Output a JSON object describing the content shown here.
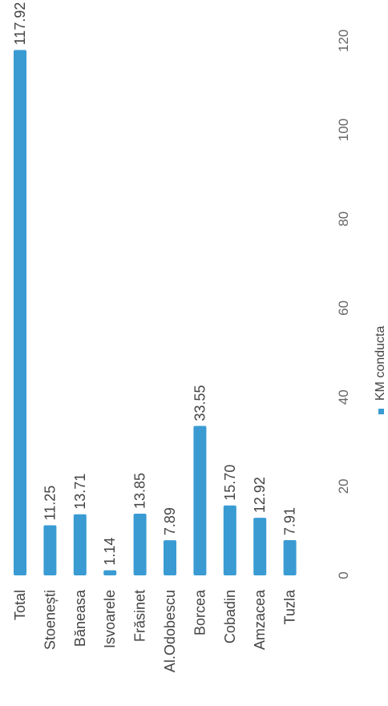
{
  "chart_data": {
    "type": "bar",
    "orientation": "rotated-90-ccw",
    "categories": [
      "Total",
      "Stoenești",
      "Băneasa",
      "Isvoarele",
      "Frăsinet",
      "Al.Odobescu",
      "Borcea",
      "Cobadin",
      "Amzacea",
      "Tuzla"
    ],
    "series": [
      {
        "name": "KM conducta",
        "values": [
          117.92,
          11.25,
          13.71,
          1.14,
          13.85,
          7.89,
          33.55,
          15.7,
          12.92,
          7.91
        ],
        "labels": [
          "117.92",
          "11.25",
          "13.71",
          "1.14",
          "13.85",
          "7.89",
          "33.55",
          "15.70",
          "12.92",
          "7.91"
        ]
      }
    ],
    "value_axis": {
      "min": 0,
      "max": 120,
      "ticks": [
        "0",
        "20",
        "40",
        "60",
        "80",
        "100",
        "120"
      ]
    },
    "grid": false,
    "legend_position": "bottom",
    "colors": {
      "bar_top": "#3a9bd3",
      "bar_bottom": "#eaf5fc",
      "text": "#444444",
      "tick": "#666666"
    }
  }
}
